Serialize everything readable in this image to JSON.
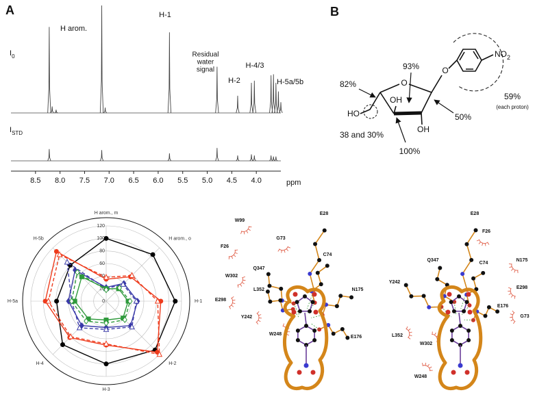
{
  "chart_data": [
    {
      "type": "spectrum",
      "panel_label": "A",
      "xlabel": "ppm",
      "xlim": [
        9.0,
        3.5
      ],
      "xticks": [
        8.5,
        {
          "value": 8,
          "label": "8.0"
        },
        7.5,
        {
          "value": 7,
          "label": "7.0"
        },
        6.5,
        {
          "value": 6,
          "label": "6.0"
        },
        5.5,
        {
          "value": 5,
          "label": "5.0"
        },
        4.5,
        {
          "value": 4,
          "label": "4.0"
        }
      ],
      "ylim": [
        0,
        100
      ],
      "peak_labels": [
        "H arom.",
        "H-1",
        "H-2",
        "H-4/3",
        "H-5a/5b"
      ],
      "water_label": [
        "Residual",
        "water",
        "signal"
      ],
      "series": [
        {
          "label": "I",
          "label_sub": "0",
          "color": "#444444",
          "x": [
            8.22,
            8.16,
            8.08,
            7.15,
            7.08,
            5.77,
            4.8,
            4.38,
            4.1,
            4.04,
            3.7,
            3.65,
            3.6,
            3.55,
            3.5
          ],
          "values": [
            80,
            6,
            3,
            100,
            5,
            75,
            43,
            16,
            28,
            30,
            35,
            36,
            28,
            20,
            10
          ]
        },
        {
          "label": "I",
          "label_sub": "STD",
          "color": "#444444",
          "x": [
            8.22,
            7.15,
            5.77,
            4.8,
            4.38,
            4.1,
            4.04,
            3.7,
            3.65,
            3.6
          ],
          "values": [
            11,
            10,
            7,
            12,
            5,
            6,
            5,
            5,
            4,
            4
          ]
        }
      ]
    },
    {
      "type": "radar",
      "categories": [
        "H arom., m",
        "H arom., o",
        "H-1",
        "H-2",
        "H-3",
        "H-4",
        "H-5a",
        "H-5b"
      ],
      "ylim": [
        0,
        120
      ],
      "yticks": [
        0,
        20,
        40,
        60,
        80,
        100,
        120
      ],
      "grid": true,
      "series": [
        {
          "color": "#000000",
          "dash": false,
          "marker": "circle",
          "values": [
            100,
            105,
            110,
            110,
            100,
            98,
            79,
            81
          ]
        },
        {
          "color": "#ee3b1c",
          "dash": false,
          "marker": "circle",
          "values": [
            35,
            55,
            87,
            115,
            70,
            82,
            97,
            112
          ]
        },
        {
          "color": "#ee3b1c",
          "dash": true,
          "marker": "triangle",
          "values": [
            38,
            58,
            82,
            120,
            68,
            80,
            92,
            105
          ]
        },
        {
          "color": "#3a3aa8",
          "dash": false,
          "marker": "diamond",
          "values": [
            22,
            40,
            50,
            55,
            42,
            55,
            60,
            70
          ]
        },
        {
          "color": "#3a3aa8",
          "dash": true,
          "marker": "triangle",
          "values": [
            20,
            38,
            48,
            58,
            45,
            60,
            55,
            88
          ]
        },
        {
          "color": "#2f9a3c",
          "dash": false,
          "marker": "square",
          "values": [
            20,
            28,
            35,
            38,
            30,
            40,
            50,
            55
          ]
        },
        {
          "color": "#2f9a3c",
          "dash": true,
          "marker": "diamond",
          "values": [
            18,
            30,
            38,
            42,
            35,
            45,
            55,
            65
          ]
        }
      ]
    }
  ],
  "panel_b": {
    "label": "B",
    "nitro": "NO",
    "nitro_sub": "2",
    "ring_o": "O",
    "glyco_o": "O",
    "ho": "HO",
    "oh_upper": "OH",
    "oh_lower": "OH",
    "p93": "93%",
    "p82": "82%",
    "p59": "59%",
    "each_proton": "(each proton)",
    "p50": "50%",
    "p38": "38 and 30%",
    "p100": "100%"
  },
  "panel_c": {
    "left": [
      "W99",
      "G73",
      "E28",
      "F26",
      "Q347",
      "C74",
      "W302",
      "L352",
      "N175",
      "E298",
      "Y242",
      "W248",
      "E176"
    ],
    "right": [
      "E28",
      "F26",
      "Q347",
      "C74",
      "N175",
      "Y242",
      "E298",
      "E176",
      "G73",
      "L352",
      "W302",
      "W248"
    ]
  }
}
